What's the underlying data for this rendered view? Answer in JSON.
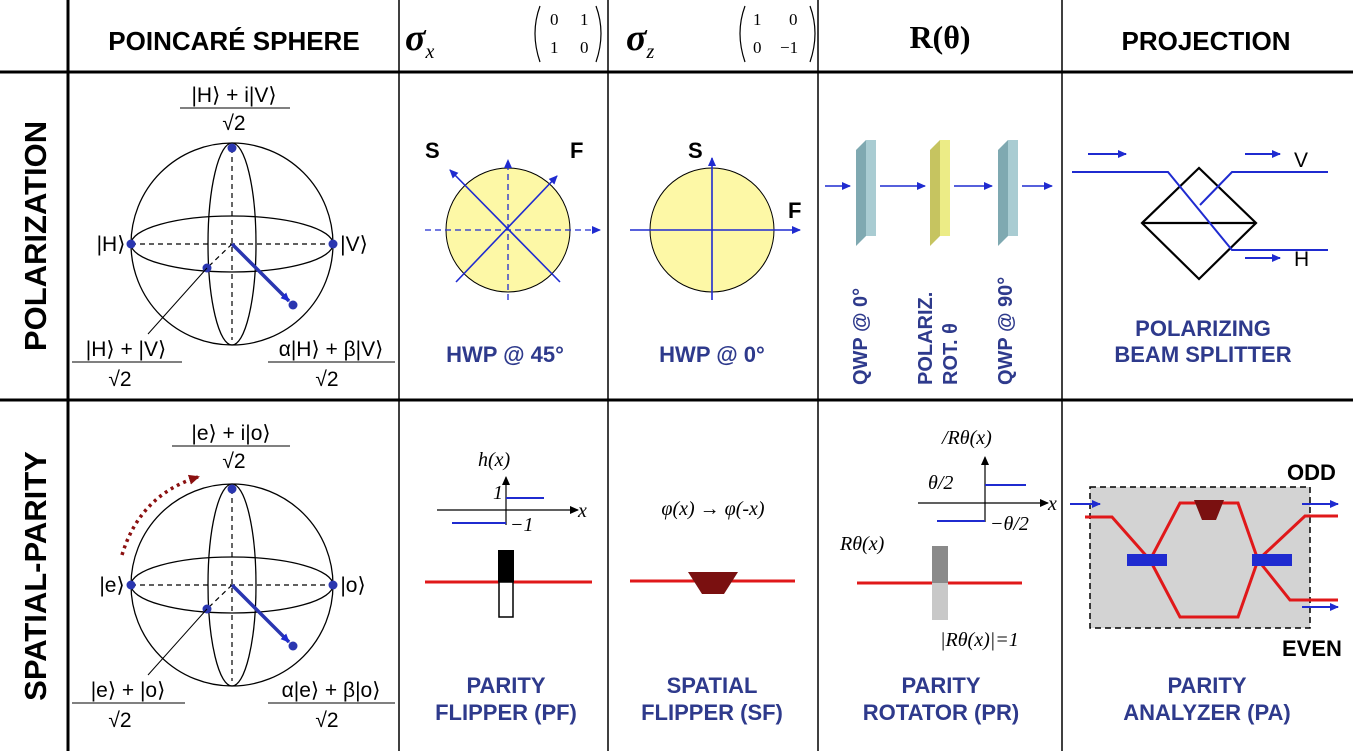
{
  "headers": {
    "poincare": "POINCARÉ SPHERE",
    "sigma_x": "σx",
    "sigma_x_matrix": [
      "0",
      "1",
      "1",
      "0"
    ],
    "sigma_z": "σz",
    "sigma_z_matrix": [
      "1",
      "0",
      "0",
      "−1"
    ],
    "rotation": "R(θ)",
    "projection": "PROJECTION"
  },
  "rows": {
    "polarization": "POLARIZATION",
    "spatial_parity": "SPATIAL-PARITY"
  },
  "polarization": {
    "sphere": {
      "top_num": "|H⟩ + i|V⟩",
      "top_den": "√2",
      "left": "|H⟩",
      "right": "|V⟩",
      "bl_num": "|H⟩ + |V⟩",
      "bl_den": "√2",
      "br_num": "α|H⟩ + β|V⟩",
      "br_den": "√2"
    },
    "hwp45": {
      "slow": "S",
      "fast": "F",
      "label": "HWP @ 45°"
    },
    "hwp0": {
      "slow": "S",
      "fast": "F",
      "label": "HWP @ 0°"
    },
    "rotator": {
      "qwp1": "QWP @ 0°",
      "rot_line1": "POLARIZ.",
      "rot_line2": "ROT. θ",
      "qwp2": "QWP @ 90°"
    },
    "pbs": {
      "out_v": "V",
      "out_h": "H",
      "label_line1": "POLARIZING",
      "label_line2": "BEAM SPLITTER"
    }
  },
  "spatial": {
    "sphere": {
      "top_num": "|e⟩ + i|o⟩",
      "top_den": "√2",
      "left": "|e⟩",
      "right": "|o⟩",
      "bl_num": "|e⟩ + |o⟩",
      "bl_den": "√2",
      "br_num": "α|e⟩ + β|o⟩",
      "br_den": "√2"
    },
    "pf": {
      "func": "h(x)",
      "plus_one": "1",
      "minus_one": "−1",
      "axis": "x",
      "label_line1": "PARITY",
      "label_line2": "FLIPPER (PF)"
    },
    "sf": {
      "mapping": "φ(x) → φ(-x)",
      "label_line1": "SPATIAL",
      "label_line2": "FLIPPER (SF)"
    },
    "pr": {
      "phase": "/Rθ(x)",
      "plus": "θ/2",
      "minus": "−θ/2",
      "axis": "x",
      "func": "Rθ(x)",
      "modulus": "|Rθ(x)|=1",
      "label_line1": "PARITY",
      "label_line2": "ROTATOR (PR)"
    },
    "pa": {
      "odd": "ODD",
      "even": "EVEN",
      "label_line1": "PARITY",
      "label_line2": "ANALYZER (PA)"
    }
  },
  "colors": {
    "label_blue": "#2e3a8c",
    "arrow_blue": "#1f2bd0",
    "yellow_fill": "#fdf8a6",
    "plate_teal": "#a9ccd2",
    "plate_yellow": "#ecec86",
    "beam_red": "#e0181a",
    "dark_red": "#7a1010"
  }
}
